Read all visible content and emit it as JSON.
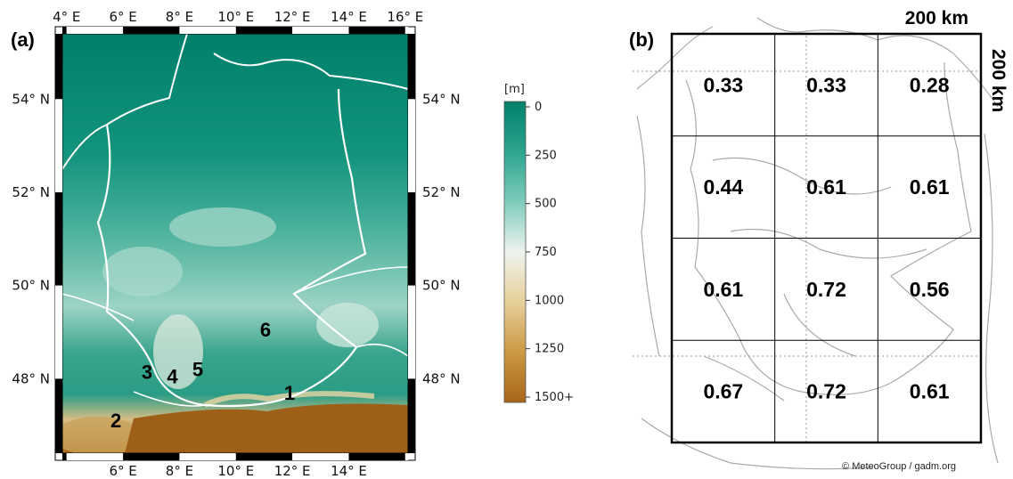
{
  "panel_a": {
    "label": "(a)",
    "lon_ticks": [
      "4° E",
      "6° E",
      "8° E",
      "10° E",
      "12° E",
      "14° E",
      "16° E"
    ],
    "lon_ticks_bottom": [
      "6° E",
      "8° E",
      "10° E",
      "12° E",
      "14° E"
    ],
    "lat_ticks": [
      "54° N",
      "52° N",
      "50° N",
      "48° N"
    ],
    "sites": [
      {
        "label": "1",
        "lon": 11.9,
        "lat": 47.55
      },
      {
        "label": "2",
        "lon": 5.75,
        "lat": 46.95
      },
      {
        "label": "3",
        "lon": 6.85,
        "lat": 48.0
      },
      {
        "label": "4",
        "lon": 7.75,
        "lat": 47.9
      },
      {
        "label": "5",
        "lon": 8.65,
        "lat": 48.05
      },
      {
        "label": "6",
        "lon": 11.05,
        "lat": 48.9
      }
    ],
    "colorbar": {
      "unit": "[m]",
      "ticks": [
        "0",
        "250",
        "500",
        "750",
        "1000",
        "1250",
        "1500+"
      ],
      "colors": [
        "#00806a",
        "#2ea58f",
        "#7dcbbb",
        "#eef3ef",
        "#e6cf99",
        "#cc9a45",
        "#a86519"
      ]
    },
    "colors": {
      "water": "#00806a",
      "border": "#ffffff"
    }
  },
  "panel_b": {
    "label": "(b)",
    "scale_x": "200 km",
    "scale_y": "200 km",
    "grid_values": [
      [
        "0.33",
        "0.33",
        "0.28"
      ],
      [
        "0.44",
        "0.61",
        "0.61"
      ],
      [
        "0.61",
        "0.72",
        "0.56"
      ],
      [
        "0.67",
        "0.72",
        "0.61"
      ]
    ],
    "credit": "© MeteoGroup / gadm.org"
  }
}
